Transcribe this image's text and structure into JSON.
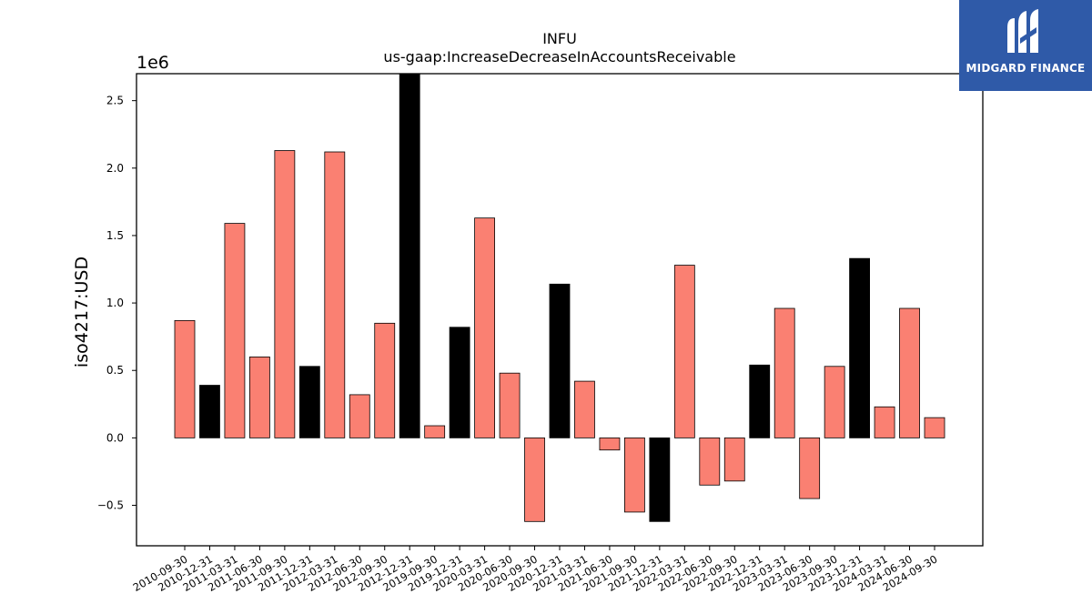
{
  "brand": {
    "name": "MIDGARD FINANCE",
    "logo_icon": "midgard-m-logo-icon",
    "background": "#2f5aa8"
  },
  "colors": {
    "default_bar": "#fa8072",
    "highlight_bar": "#000000",
    "axis": "#000000"
  },
  "chart_data": {
    "type": "bar",
    "title": "INFU",
    "subtitle": "us-gaap:IncreaseDecreaseInAccountsReceivable",
    "ylabel": "iso4217:USD",
    "xlabel": "",
    "y_multiplier_label": "1e6",
    "ylim": [
      -0.8,
      2.7
    ],
    "yticks": [
      -0.5,
      0.0,
      0.5,
      1.0,
      1.5,
      2.0,
      2.5
    ],
    "ytick_labels": [
      "−0.5",
      "0.0",
      "0.5",
      "1.0",
      "1.5",
      "2.0",
      "2.5"
    ],
    "grid": false,
    "categories": [
      "2010-09-30",
      "2010-12-31",
      "2011-03-31",
      "2011-06-30",
      "2011-09-30",
      "2011-12-31",
      "2012-03-31",
      "2012-06-30",
      "2012-09-30",
      "2012-12-31",
      "2019-09-30",
      "2019-12-31",
      "2020-03-31",
      "2020-06-30",
      "2020-09-30",
      "2020-12-31",
      "2021-03-31",
      "2021-06-30",
      "2021-09-30",
      "2021-12-31",
      "2022-03-31",
      "2022-06-30",
      "2022-09-30",
      "2022-12-31",
      "2023-03-31",
      "2023-06-30",
      "2023-09-30",
      "2023-12-31",
      "2024-03-31",
      "2024-06-30",
      "2024-09-30"
    ],
    "values": [
      0.87,
      0.39,
      1.59,
      0.6,
      2.13,
      0.53,
      2.12,
      0.32,
      0.85,
      2.7,
      0.09,
      0.82,
      1.63,
      0.48,
      -0.62,
      1.14,
      0.42,
      -0.09,
      -0.55,
      -0.62,
      1.28,
      -0.35,
      -0.32,
      0.54,
      0.96,
      -0.45,
      0.53,
      1.33,
      0.23,
      0.96,
      0.15
    ],
    "highlight": [
      false,
      true,
      false,
      false,
      false,
      true,
      false,
      false,
      false,
      true,
      false,
      true,
      false,
      false,
      false,
      true,
      false,
      false,
      false,
      true,
      false,
      false,
      false,
      true,
      false,
      false,
      false,
      true,
      false,
      false,
      false
    ]
  }
}
